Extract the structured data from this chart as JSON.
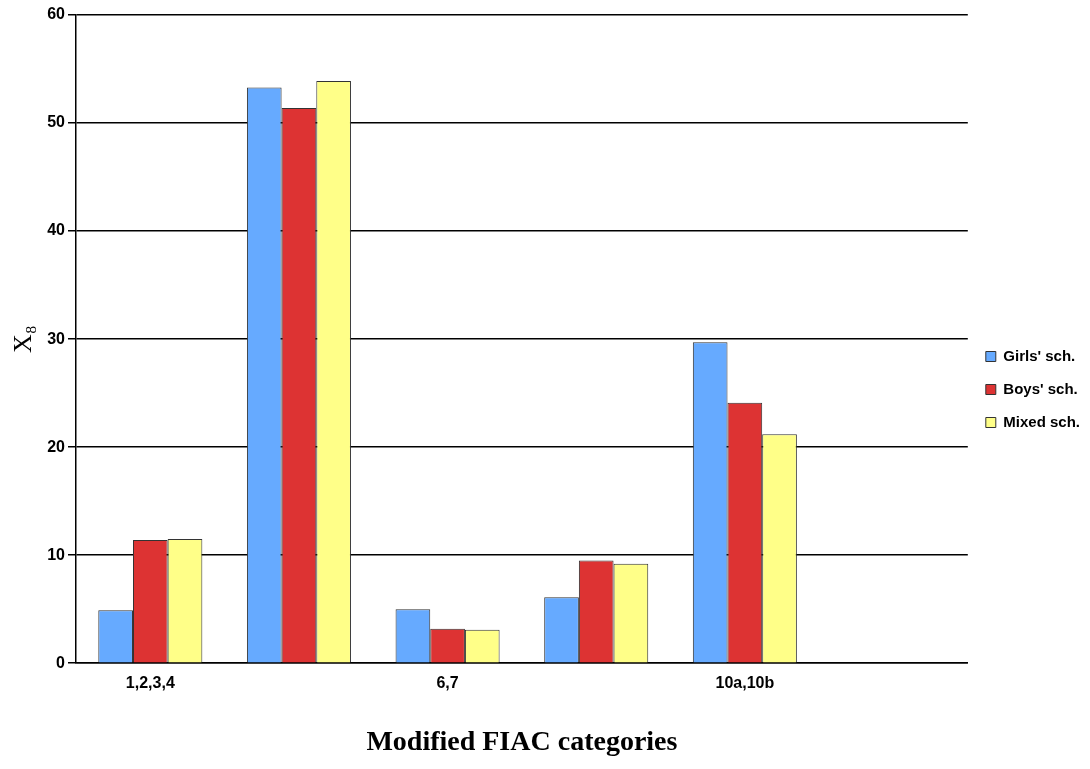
{
  "chart_data": {
    "type": "bar",
    "xlabel": "Modified FIAC categories",
    "ylabel": "X₈",
    "categories": [
      "1,2,3,4",
      null,
      "6,7",
      null,
      "10a,10b",
      null
    ],
    "series": [
      {
        "name": "Girls' sch.",
        "color": "#66aaff",
        "values": [
          4.9,
          53.3,
          5.0,
          6.1,
          29.7,
          null
        ]
      },
      {
        "name": "Boys' sch.",
        "color": "#dd3333",
        "values": [
          11.4,
          51.4,
          3.2,
          9.5,
          24.1,
          null
        ]
      },
      {
        "name": "Mixed sch.",
        "color": "#ffff88",
        "values": [
          11.5,
          53.9,
          3.1,
          9.2,
          21.2,
          null
        ]
      }
    ],
    "ylim": [
      0,
      60
    ],
    "yticks": [
      0,
      10,
      20,
      30,
      40,
      50,
      60
    ],
    "grid": "y",
    "legend": "right"
  }
}
